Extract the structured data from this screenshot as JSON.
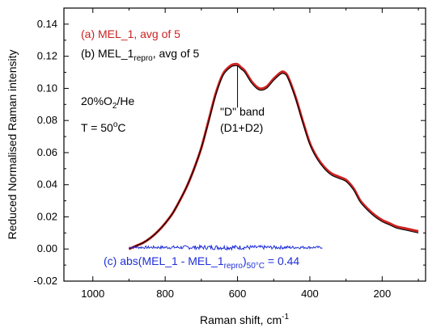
{
  "chart_data": {
    "type": "line",
    "title": "",
    "xlabel": "Raman shift, cm",
    "xlabel_sup": "-1",
    "ylabel": "Reduced Normalised Raman intensity",
    "xlim": [
      1080,
      80
    ],
    "ylim": [
      -0.02,
      0.15
    ],
    "x_reversed": true,
    "grid": false,
    "x_ticks": [
      1000,
      800,
      600,
      400,
      200
    ],
    "x_tick_labels": [
      "1000",
      "800",
      "600",
      "400",
      "200"
    ],
    "y_ticks": [
      -0.02,
      0.0,
      0.02,
      0.04,
      0.06,
      0.08,
      0.1,
      0.12,
      0.14
    ],
    "y_tick_labels": [
      "-0.02",
      "0.00",
      "0.02",
      "0.04",
      "0.06",
      "0.08",
      "0.10",
      "0.12",
      "0.14"
    ],
    "series": [
      {
        "name": "(a) MEL_1, avg of 5",
        "color": "#cc2222",
        "x": [
          900,
          880,
          860,
          840,
          820,
          800,
          780,
          760,
          740,
          720,
          700,
          680,
          660,
          640,
          620,
          610,
          600,
          590,
          580,
          560,
          540,
          520,
          500,
          480,
          470,
          460,
          440,
          420,
          400,
          380,
          360,
          340,
          320,
          300,
          280,
          270,
          260,
          240,
          220,
          200,
          180,
          160,
          140,
          120,
          100
        ],
        "y": [
          0.0,
          0.002,
          0.004,
          0.007,
          0.011,
          0.016,
          0.022,
          0.03,
          0.039,
          0.05,
          0.063,
          0.08,
          0.097,
          0.109,
          0.114,
          0.115,
          0.115,
          0.113,
          0.111,
          0.104,
          0.1,
          0.101,
          0.106,
          0.11,
          0.11,
          0.107,
          0.095,
          0.08,
          0.066,
          0.057,
          0.051,
          0.047,
          0.045,
          0.043,
          0.038,
          0.034,
          0.03,
          0.025,
          0.021,
          0.018,
          0.016,
          0.014,
          0.013,
          0.012,
          0.011
        ]
      },
      {
        "name": "(b) MEL_1",
        "name_sub": "repro",
        "name_suffix": ", avg of 5",
        "color": "#000000",
        "x": [
          900,
          880,
          860,
          840,
          820,
          800,
          780,
          760,
          740,
          720,
          700,
          680,
          660,
          640,
          620,
          610,
          600,
          590,
          580,
          560,
          540,
          520,
          500,
          480,
          470,
          460,
          440,
          420,
          400,
          380,
          360,
          340,
          320,
          300,
          280,
          270,
          260,
          240,
          220,
          200,
          180,
          160,
          140,
          120,
          100
        ],
        "y": [
          0.0,
          0.002,
          0.004,
          0.007,
          0.011,
          0.016,
          0.022,
          0.03,
          0.039,
          0.05,
          0.063,
          0.079,
          0.096,
          0.108,
          0.113,
          0.114,
          0.114,
          0.112,
          0.11,
          0.103,
          0.099,
          0.1,
          0.105,
          0.109,
          0.109,
          0.106,
          0.094,
          0.079,
          0.065,
          0.056,
          0.05,
          0.046,
          0.044,
          0.042,
          0.037,
          0.033,
          0.029,
          0.024,
          0.02,
          0.017,
          0.015,
          0.013,
          0.012,
          0.011,
          0.01
        ]
      },
      {
        "name": "(c) abs(MEL_1 - MEL_1",
        "name_sub": "repro",
        "name_mid": ")",
        "name_sub2": "50°C",
        "name_suffix": " = 0.44",
        "color": "#1f2fd8",
        "x_start": 900,
        "x_end": 365,
        "y_level": 0.001,
        "y_noise": 0.0015
      }
    ],
    "annotations": {
      "condition_gas": "20%O",
      "condition_gas_sub": "2",
      "condition_gas_suffix": "/He",
      "condition_temp": "T = 50",
      "condition_temp_sup": "o",
      "condition_temp_suffix": "C",
      "band_line1": "\"D\" band",
      "band_line2": "(D1+D2)",
      "band_x": 600,
      "band_peak_y": 0.114,
      "band_tip_y": 0.088
    }
  }
}
